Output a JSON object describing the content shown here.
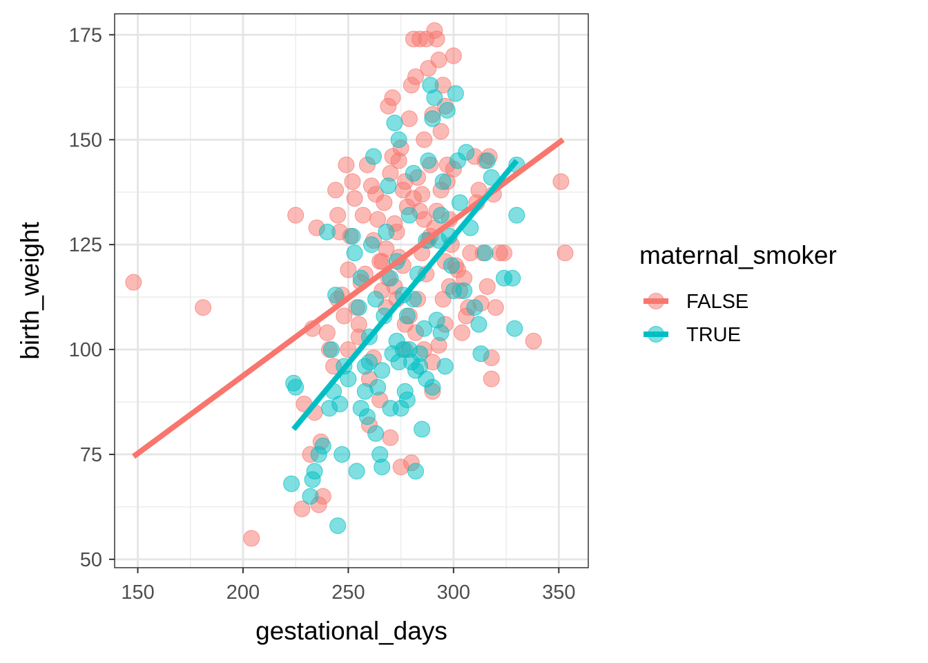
{
  "chart_data": {
    "type": "scatter",
    "title": "",
    "xlabel": "gestational_days",
    "ylabel": "birth_weight",
    "xlim": [
      139,
      364
    ],
    "ylim": [
      48,
      180
    ],
    "x_ticks": [
      150,
      200,
      250,
      300,
      350
    ],
    "y_ticks": [
      50,
      75,
      100,
      125,
      150,
      175
    ],
    "grid": true,
    "legend": {
      "title": "maternal_smoker",
      "position": "right"
    },
    "series": [
      {
        "name": "FALSE",
        "color": "#F8766D",
        "trend": {
          "x": [
            148,
            352
          ],
          "y": [
            74.5,
            150
          ]
        },
        "points": [
          [
            148,
            116
          ],
          [
            181,
            110
          ],
          [
            204,
            55
          ],
          [
            225,
            132
          ],
          [
            228,
            62
          ],
          [
            229,
            87
          ],
          [
            232,
            75
          ],
          [
            233,
            105
          ],
          [
            234,
            85
          ],
          [
            235,
            129
          ],
          [
            236,
            63
          ],
          [
            237,
            78
          ],
          [
            238,
            65
          ],
          [
            240,
            104
          ],
          [
            241,
            100
          ],
          [
            243,
            96
          ],
          [
            244,
            138
          ],
          [
            245,
            132
          ],
          [
            246,
            128
          ],
          [
            247,
            113
          ],
          [
            248,
            108
          ],
          [
            249,
            144
          ],
          [
            250,
            100
          ],
          [
            251,
            127
          ],
          [
            252,
            140
          ],
          [
            253,
            136
          ],
          [
            254,
            110
          ],
          [
            255,
            103
          ],
          [
            256,
            116
          ],
          [
            257,
            132
          ],
          [
            258,
            118
          ],
          [
            259,
            144
          ],
          [
            260,
            82
          ],
          [
            261,
            139
          ],
          [
            262,
            98
          ],
          [
            263,
            137
          ],
          [
            264,
            131
          ],
          [
            265,
            121
          ],
          [
            266,
            114
          ],
          [
            267,
            135
          ],
          [
            268,
            124
          ],
          [
            269,
            158
          ],
          [
            270,
            142
          ],
          [
            271,
            160
          ],
          [
            272,
            130
          ],
          [
            273,
            128
          ],
          [
            274,
            122
          ],
          [
            275,
            148
          ],
          [
            276,
            138
          ],
          [
            277,
            100
          ],
          [
            278,
            134
          ],
          [
            279,
            155
          ],
          [
            280,
            163
          ],
          [
            281,
            174
          ],
          [
            282,
            165
          ],
          [
            283,
            141
          ],
          [
            284,
            174
          ],
          [
            285,
            137
          ],
          [
            286,
            150
          ],
          [
            287,
            174
          ],
          [
            288,
            167
          ],
          [
            289,
            144
          ],
          [
            290,
            156
          ],
          [
            291,
            176
          ],
          [
            292,
            174
          ],
          [
            293,
            169
          ],
          [
            294,
            152
          ],
          [
            295,
            163
          ],
          [
            296,
            158
          ],
          [
            297,
            140
          ],
          [
            298,
            131
          ],
          [
            299,
            125
          ],
          [
            300,
            170
          ],
          [
            301,
            120
          ],
          [
            302,
            119
          ],
          [
            303,
            114
          ],
          [
            304,
            104
          ],
          [
            305,
            117
          ],
          [
            306,
            108
          ],
          [
            307,
            110
          ],
          [
            308,
            123
          ],
          [
            310,
            146
          ],
          [
            311,
            135
          ],
          [
            312,
            138
          ],
          [
            313,
            111
          ],
          [
            314,
            123
          ],
          [
            315,
            145
          ],
          [
            316,
            115
          ],
          [
            317,
            146
          ],
          [
            318,
            98
          ],
          [
            319,
            137
          ],
          [
            320,
            110
          ],
          [
            322,
            123
          ],
          [
            324,
            123
          ],
          [
            338,
            102
          ],
          [
            351,
            140
          ],
          [
            353,
            123
          ],
          [
            318,
            93
          ],
          [
            300,
            143
          ],
          [
            295,
            112
          ],
          [
            290,
            90
          ],
          [
            285,
            123
          ],
          [
            280,
            73
          ],
          [
            275,
            72
          ],
          [
            270,
            79
          ],
          [
            265,
            88
          ],
          [
            260,
            93
          ],
          [
            255,
            106
          ],
          [
            250,
            119
          ],
          [
            245,
            112
          ],
          [
            268,
            110
          ],
          [
            272,
            115
          ],
          [
            276,
            120
          ],
          [
            279,
            108
          ],
          [
            283,
            112
          ],
          [
            287,
            118
          ],
          [
            289,
            127
          ],
          [
            292,
            133
          ],
          [
            296,
            121
          ],
          [
            298,
            115
          ],
          [
            271,
            146
          ],
          [
            274,
            145
          ],
          [
            277,
            140
          ],
          [
            281,
            136
          ],
          [
            284,
            133
          ],
          [
            286,
            131
          ],
          [
            288,
            126
          ],
          [
            291,
            129
          ],
          [
            294,
            138
          ],
          [
            297,
            144
          ],
          [
            262,
            126
          ],
          [
            266,
            121
          ],
          [
            269,
            117
          ],
          [
            273,
            112
          ],
          [
            277,
            106
          ],
          [
            282,
            104
          ],
          [
            286,
            100
          ],
          [
            290,
            97
          ],
          [
            293,
            101
          ],
          [
            296,
            106
          ]
        ]
      },
      {
        "name": "TRUE",
        "color": "#00BFC4",
        "trend": {
          "x": [
            224,
            330
          ],
          "y": [
            81,
            145
          ]
        },
        "points": [
          [
            223,
            68
          ],
          [
            224,
            92
          ],
          [
            225,
            91
          ],
          [
            232,
            65
          ],
          [
            233,
            69
          ],
          [
            234,
            71
          ],
          [
            236,
            75
          ],
          [
            238,
            77
          ],
          [
            240,
            128
          ],
          [
            241,
            86
          ],
          [
            242,
            100
          ],
          [
            243,
            90
          ],
          [
            244,
            113
          ],
          [
            245,
            58
          ],
          [
            246,
            87
          ],
          [
            247,
            75
          ],
          [
            248,
            96
          ],
          [
            250,
            93
          ],
          [
            252,
            127
          ],
          [
            253,
            123
          ],
          [
            254,
            71
          ],
          [
            255,
            110
          ],
          [
            256,
            117
          ],
          [
            258,
            90
          ],
          [
            259,
            84
          ],
          [
            260,
            97
          ],
          [
            261,
            125
          ],
          [
            262,
            146
          ],
          [
            263,
            80
          ],
          [
            264,
            91
          ],
          [
            265,
            75
          ],
          [
            266,
            72
          ],
          [
            267,
            108
          ],
          [
            268,
            128
          ],
          [
            269,
            139
          ],
          [
            270,
            117
          ],
          [
            271,
            99
          ],
          [
            272,
            154
          ],
          [
            273,
            102
          ],
          [
            274,
            150
          ],
          [
            275,
            86
          ],
          [
            276,
            100
          ],
          [
            277,
            90
          ],
          [
            278,
            88
          ],
          [
            279,
            132
          ],
          [
            280,
            97
          ],
          [
            281,
            142
          ],
          [
            282,
            71
          ],
          [
            283,
            118
          ],
          [
            284,
            96
          ],
          [
            285,
            81
          ],
          [
            286,
            105
          ],
          [
            287,
            126
          ],
          [
            288,
            145
          ],
          [
            289,
            163
          ],
          [
            290,
            155
          ],
          [
            291,
            160
          ],
          [
            292,
            107
          ],
          [
            293,
            126
          ],
          [
            294,
            132
          ],
          [
            295,
            140
          ],
          [
            296,
            96
          ],
          [
            297,
            157
          ],
          [
            298,
            127
          ],
          [
            299,
            120
          ],
          [
            300,
            114
          ],
          [
            301,
            161
          ],
          [
            302,
            145
          ],
          [
            303,
            135
          ],
          [
            305,
            114
          ],
          [
            306,
            147
          ],
          [
            308,
            129
          ],
          [
            310,
            110
          ],
          [
            312,
            106
          ],
          [
            313,
            99
          ],
          [
            315,
            123
          ],
          [
            316,
            145
          ],
          [
            318,
            141
          ],
          [
            324,
            117
          ],
          [
            328,
            117
          ],
          [
            329,
            105
          ],
          [
            330,
            132
          ],
          [
            330,
            144
          ],
          [
            256,
            86
          ],
          [
            258,
            96
          ],
          [
            260,
            103
          ],
          [
            263,
            112
          ],
          [
            266,
            95
          ],
          [
            270,
            86
          ],
          [
            274,
            97
          ],
          [
            278,
            108
          ],
          [
            281,
            112
          ],
          [
            284,
            99
          ],
          [
            287,
            93
          ],
          [
            290,
            91
          ],
          [
            294,
            104
          ],
          [
            282,
            95
          ],
          [
            279,
            100
          ],
          [
            276,
            113
          ],
          [
            273,
            121
          ]
        ]
      }
    ]
  }
}
